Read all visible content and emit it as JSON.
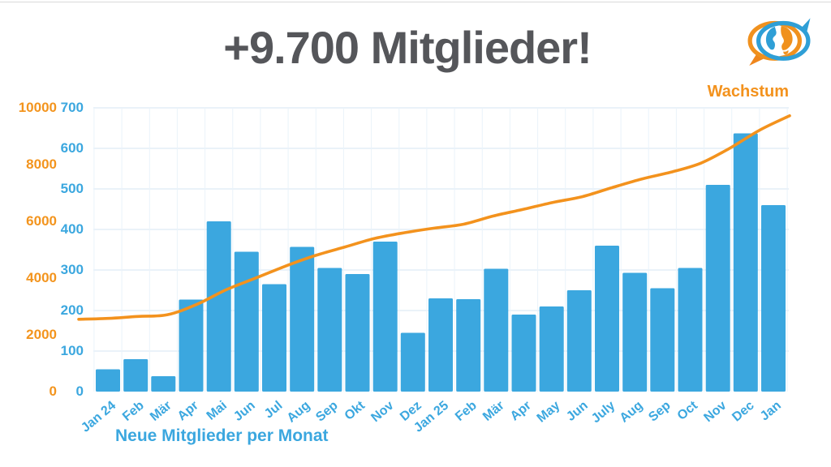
{
  "page": {
    "title": "+9.700 Mitglieder!"
  },
  "chart": {
    "line_legend": "Wachstum",
    "x_axis_title": "Neue Mitglieder per Monat"
  },
  "colors": {
    "bar_blue": "#3ba7df",
    "line_orange": "#f3921d",
    "orange_axis_text": "#f3941d",
    "blue_axis_text": "#3ba7df",
    "title_gray": "#55565a",
    "grid_horizontal": "#e4eef7",
    "grid_vertical": "#eaf3fa",
    "background": "#ffffff",
    "top_border": "#d4d4d4"
  },
  "logo": {
    "description": "globe-with-two-speech-bubbles",
    "orange": "#f08a1d",
    "blue": "#2f9fd6"
  },
  "chart_data": {
    "type": "bar",
    "title": "+9.700 Mitglieder!",
    "categories": [
      "Jan 24",
      "Feb",
      "Mär",
      "Apr",
      "Mai",
      "Jun",
      "Jul",
      "Aug",
      "Sep",
      "Okt",
      "Nov",
      "Dez",
      "Jan 25",
      "Feb",
      "Mär",
      "Apr",
      "May",
      "Jun",
      "July",
      "Aug",
      "Sep",
      "Oct",
      "Nov",
      "Dec",
      "Jan"
    ],
    "series": [
      {
        "name": "Neue Mitglieder per Monat",
        "type": "bar",
        "yaxis": "inner_blue",
        "values": [
          55,
          80,
          38,
          227,
          420,
          345,
          265,
          357,
          305,
          290,
          370,
          145,
          230,
          228,
          303,
          190,
          210,
          250,
          360,
          293,
          255,
          305,
          510,
          637,
          460
        ]
      },
      {
        "name": "Wachstum",
        "type": "line",
        "yaxis": "outer_orange",
        "values": [
          2550,
          2580,
          2650,
          2710,
          3080,
          3600,
          4010,
          4430,
          4800,
          5100,
          5400,
          5600,
          5760,
          5900,
          6190,
          6420,
          6665,
          6870,
          7185,
          7490,
          7735,
          8050,
          8590,
          9220,
          9720
        ]
      }
    ],
    "yaxis_inner_blue": {
      "range": [
        0,
        700
      ],
      "ticks": [
        "0",
        "100",
        "200",
        "300",
        "400",
        "500",
        "600",
        "700"
      ]
    },
    "yaxis_outer_orange": {
      "range": [
        0,
        10000
      ],
      "ticks": [
        "0",
        "2000",
        "4000",
        "6000",
        "8000",
        "10000"
      ]
    },
    "grid": "light horizontal lines at blue ticks plus faint vertical lines between months",
    "legend_position": "top-right (line label only), bar label bottom-left"
  }
}
